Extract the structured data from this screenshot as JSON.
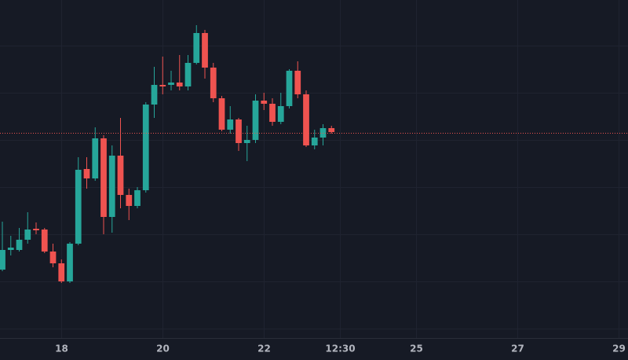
{
  "chart_data": {
    "type": "candlestick",
    "open": [
      87,
      112,
      112,
      125,
      139,
      138,
      110,
      95,
      72,
      120,
      215,
      203,
      254,
      154,
      232,
      182,
      168,
      188,
      297,
      322,
      322,
      325,
      320,
      350,
      388,
      344,
      305,
      265,
      278,
      248,
      252,
      302,
      298,
      275,
      295,
      340,
      310,
      245,
      255,
      267
    ],
    "high": [
      148,
      130,
      140,
      160,
      147,
      140,
      120,
      100,
      122,
      230,
      230,
      268,
      258,
      245,
      280,
      190,
      192,
      300,
      345,
      358,
      340,
      360,
      360,
      398,
      392,
      350,
      308,
      295,
      280,
      270,
      310,
      312,
      305,
      312,
      342,
      352,
      315,
      265,
      272,
      270
    ],
    "low": [
      85,
      105,
      110,
      120,
      132,
      108,
      90,
      70,
      70,
      118,
      190,
      200,
      132,
      134,
      165,
      150,
      165,
      185,
      280,
      310,
      315,
      315,
      315,
      348,
      330,
      300,
      263,
      260,
      238,
      225,
      248,
      290,
      270,
      272,
      292,
      305,
      243,
      240,
      245,
      260
    ],
    "close": [
      112,
      115,
      125,
      138,
      137,
      110,
      95,
      72,
      120,
      214,
      203,
      254,
      154,
      232,
      182,
      168,
      188,
      297,
      322,
      320,
      325,
      320,
      350,
      388,
      344,
      305,
      265,
      278,
      248,
      252,
      302,
      298,
      275,
      295,
      340,
      310,
      245,
      255,
      267,
      262
    ],
    "up_color": "#26a69a",
    "down_color": "#ef5350",
    "price_line": 261,
    "ylim": [
      0,
      430
    ],
    "yticks": [
      12,
      72,
      132,
      192,
      252,
      312,
      372
    ],
    "xlim": [
      -0.28,
      74.14
    ],
    "xticks": [
      {
        "value": 7,
        "label": "18"
      },
      {
        "value": 19,
        "label": "20"
      },
      {
        "value": 31,
        "label": "22"
      },
      {
        "value": 40,
        "label": "12:30"
      },
      {
        "value": 49,
        "label": "25"
      },
      {
        "value": 61,
        "label": "27"
      },
      {
        "value": 73,
        "label": "29"
      }
    ],
    "grid": true
  }
}
